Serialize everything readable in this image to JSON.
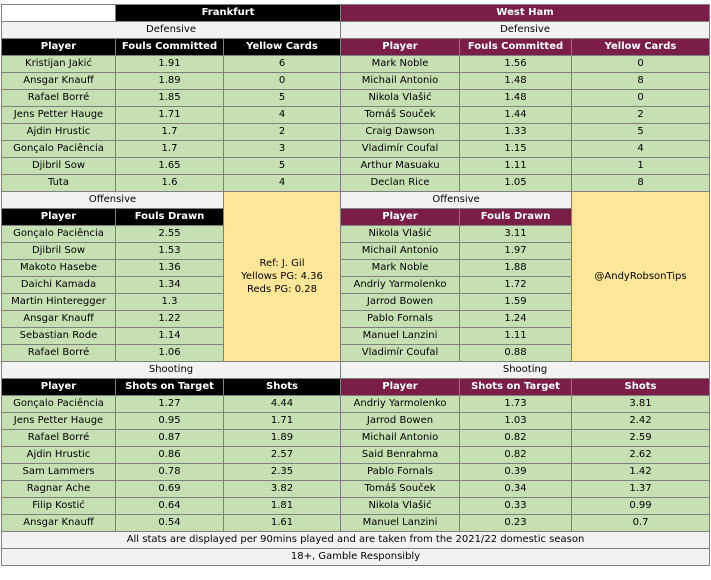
{
  "frankfurt": {
    "team": "Frankfurt",
    "defensive": {
      "title": "Defensive",
      "headers": [
        "Player",
        "Fouls Committed",
        "Yellow Cards"
      ],
      "rows": [
        [
          "Kristijan Jakić",
          "1.91",
          "6"
        ],
        [
          "Ansgar Knauff",
          "1.89",
          "0"
        ],
        [
          "Rafael Borré",
          "1.85",
          "5"
        ],
        [
          "Jens Petter Hauge",
          "1.71",
          "4"
        ],
        [
          "Ajdin Hrustic",
          "1.7",
          "2"
        ],
        [
          "Gonçalo Paciência",
          "1.7",
          "3"
        ],
        [
          "Djibril Sow",
          "1.65",
          "5"
        ],
        [
          "Tuta",
          "1.6",
          "4"
        ]
      ]
    },
    "offensive": {
      "title": "Offensive",
      "headers": [
        "Player",
        "Fouls Drawn"
      ],
      "rows": [
        [
          "Gonçalo Paciência",
          "2.55"
        ],
        [
          "Djibril Sow",
          "1.53"
        ],
        [
          "Makoto Hasebe",
          "1.36"
        ],
        [
          "Daichi Kamada",
          "1.34"
        ],
        [
          "Martin Hinteregger",
          "1.3"
        ],
        [
          "Ansgar Knauff",
          "1.22"
        ],
        [
          "Sebastian Rode",
          "1.14"
        ],
        [
          "Rafael Borré",
          "1.06"
        ]
      ]
    },
    "shooting": {
      "title": "Shooting",
      "headers": [
        "Player",
        "Shots on Target",
        "Shots"
      ],
      "rows": [
        [
          "Gonçalo Paciência",
          "1.27",
          "4.44"
        ],
        [
          "Jens Petter Hauge",
          "0.95",
          "1.71"
        ],
        [
          "Rafael Borré",
          "0.87",
          "1.89"
        ],
        [
          "Ajdin Hrustic",
          "0.86",
          "2.57"
        ],
        [
          "Sam Lammers",
          "0.78",
          "2.35"
        ],
        [
          "Ragnar Ache",
          "0.69",
          "3.82"
        ],
        [
          "Filip Kostić",
          "0.64",
          "1.81"
        ],
        [
          "Ansgar Knauff",
          "0.54",
          "1.61"
        ]
      ]
    }
  },
  "westham": {
    "team": "West Ham",
    "defensive": {
      "title": "Defensive",
      "headers": [
        "Player",
        "Fouls Committed",
        "Yellow Cards"
      ],
      "rows": [
        [
          "Mark Noble",
          "1.56",
          "0"
        ],
        [
          "Michail Antonio",
          "1.48",
          "8"
        ],
        [
          "Nikola Vlašić",
          "1.48",
          "0"
        ],
        [
          "Tomáš Souček",
          "1.44",
          "2"
        ],
        [
          "Craig Dawson",
          "1.33",
          "5"
        ],
        [
          "Vladimír Coufal",
          "1.15",
          "4"
        ],
        [
          "Arthur Masuaku",
          "1.11",
          "1"
        ],
        [
          "Declan Rice",
          "1.05",
          "8"
        ]
      ]
    },
    "offensive": {
      "title": "Offensive",
      "headers": [
        "Player",
        "Fouls Drawn"
      ],
      "rows": [
        [
          "Nikola Vlašić",
          "3.11"
        ],
        [
          "Michail Antonio",
          "1.97"
        ],
        [
          "Mark Noble",
          "1.88"
        ],
        [
          "Andriy Yarmolenko",
          "1.72"
        ],
        [
          "Jarrod Bowen",
          "1.59"
        ],
        [
          "Pablo Fornals",
          "1.24"
        ],
        [
          "Manuel Lanzini",
          "1.11"
        ],
        [
          "Vladimír Coufal",
          "0.88"
        ]
      ]
    },
    "shooting": {
      "title": "Shooting",
      "headers": [
        "Player",
        "Shots on Target",
        "Shots"
      ],
      "rows": [
        [
          "Andriy Yarmolenko",
          "1.73",
          "3.81"
        ],
        [
          "Jarrod Bowen",
          "1.03",
          "2.42"
        ],
        [
          "Michail Antonio",
          "0.82",
          "2.59"
        ],
        [
          "Said Benrahma",
          "0.82",
          "2.62"
        ],
        [
          "Pablo Fornals",
          "0.39",
          "1.42"
        ],
        [
          "Tomáš Souček",
          "0.34",
          "1.37"
        ],
        [
          "Nikola Vlašić",
          "0.33",
          "0.99"
        ],
        [
          "Manuel Lanzini",
          "0.23",
          "0.7"
        ]
      ]
    }
  },
  "referee": {
    "name": "Ref: J. Gil",
    "yellows": "Yellows PG: 4.36",
    "reds": "Reds PG: 0.28"
  },
  "handle": "@AndyRobsonTips",
  "footer": {
    "note": "All stats are displayed per 90mins played and are taken from the 2021/22 domestic season",
    "gamble": "18+, Gamble Responsibly"
  }
}
